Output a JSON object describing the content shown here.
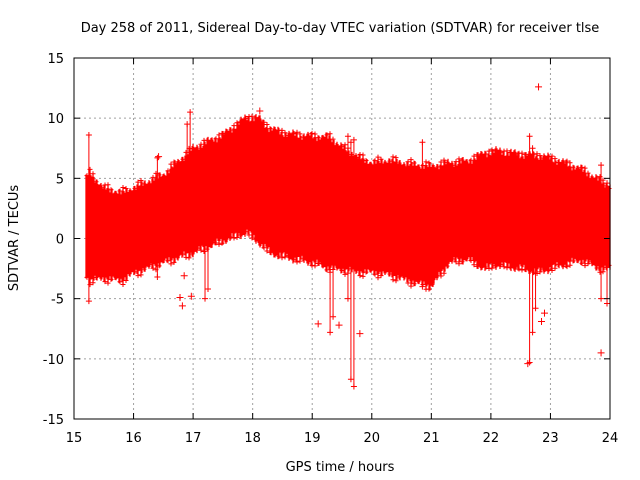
{
  "chart_data": {
    "type": "scatter",
    "title": "Day 258 of 2011, Sidereal Day-to-day VTEC variation (SDTVAR) for receiver tlse",
    "xlabel": "GPS time / hours",
    "ylabel": "SDTVAR / TECUs",
    "xlim": [
      15,
      24
    ],
    "ylim": [
      -15,
      15
    ],
    "xticks": [
      "15",
      "16",
      "17",
      "18",
      "19",
      "20",
      "21",
      "22",
      "23",
      "24"
    ],
    "yticks": [
      "15",
      "10",
      "5",
      "0",
      "-5",
      "-10",
      "-15"
    ],
    "grid": true,
    "marker": "+",
    "series_color": "#ff0000",
    "envelope": {
      "x": [
        15.2,
        15.25,
        15.5,
        15.8,
        16.0,
        16.5,
        17.0,
        17.5,
        17.9,
        18.1,
        18.3,
        18.6,
        19.0,
        19.3,
        19.5,
        19.8,
        20.0,
        20.3,
        20.6,
        21.0,
        21.3,
        21.6,
        21.9,
        22.1,
        22.5,
        22.8,
        23.0,
        23.5,
        23.9,
        24.0
      ],
      "upper": [
        5.0,
        5.5,
        4.2,
        3.8,
        4.2,
        5.3,
        7.5,
        8.6,
        10.1,
        10.0,
        9.1,
        8.7,
        8.5,
        8.4,
        7.6,
        6.7,
        6.3,
        6.5,
        6.2,
        6.0,
        6.3,
        6.4,
        7.1,
        7.3,
        7.0,
        6.9,
        6.7,
        5.8,
        4.6,
        4.5
      ],
      "lower": [
        -3.0,
        -3.5,
        -3.3,
        -3.5,
        -2.9,
        -2.0,
        -1.2,
        -0.2,
        0.5,
        -0.3,
        -1.2,
        -1.6,
        -2.0,
        -2.5,
        -2.6,
        -2.8,
        -2.8,
        -3.0,
        -3.5,
        -4.0,
        -2.0,
        -1.7,
        -2.5,
        -2.2,
        -2.5,
        -2.8,
        -2.5,
        -1.8,
        -2.6,
        -2.6
      ]
    },
    "spikes": [
      {
        "x": 15.25,
        "y1": 8.6,
        "y2": -5.2
      },
      {
        "x": 16.4,
        "y1": 6.7,
        "y2": -3.2
      },
      {
        "x": 16.9,
        "y1": 9.5,
        "y2": -1.0
      },
      {
        "x": 16.95,
        "y1": 10.5,
        "y2": -0.5
      },
      {
        "x": 17.2,
        "y1": 7.0,
        "y2": -5.0
      },
      {
        "x": 17.25,
        "y1": 6.5,
        "y2": -4.2
      },
      {
        "x": 19.3,
        "y1": 7.0,
        "y2": -7.8
      },
      {
        "x": 19.35,
        "y1": 7.0,
        "y2": -6.5
      },
      {
        "x": 19.6,
        "y1": 8.5,
        "y2": -5.0
      },
      {
        "x": 19.65,
        "y1": 8.0,
        "y2": -11.7
      },
      {
        "x": 19.7,
        "y1": 8.2,
        "y2": -12.3
      },
      {
        "x": 20.85,
        "y1": 8.0,
        "y2": -4.0
      },
      {
        "x": 22.65,
        "y1": 8.5,
        "y2": -10.3
      },
      {
        "x": 22.7,
        "y1": 7.5,
        "y2": -7.8
      },
      {
        "x": 22.75,
        "y1": 6.5,
        "y2": -5.8
      },
      {
        "x": 23.85,
        "y1": 6.1,
        "y2": -5.0
      },
      {
        "x": 23.95,
        "y1": 4.6,
        "y2": -5.4
      }
    ],
    "outliers": [
      {
        "x": 18.12,
        "y": 10.6
      },
      {
        "x": 22.8,
        "y": 12.6
      },
      {
        "x": 16.78,
        "y": -4.9
      },
      {
        "x": 16.82,
        "y": -5.6
      },
      {
        "x": 16.85,
        "y": -3.1
      },
      {
        "x": 16.97,
        "y": -4.8
      },
      {
        "x": 16.42,
        "y": 6.8
      },
      {
        "x": 19.1,
        "y": -7.1
      },
      {
        "x": 19.45,
        "y": -7.2
      },
      {
        "x": 19.8,
        "y": -7.9
      },
      {
        "x": 22.85,
        "y": -6.9
      },
      {
        "x": 22.9,
        "y": -6.2
      },
      {
        "x": 23.85,
        "y": -9.5
      },
      {
        "x": 22.62,
        "y": -10.4
      }
    ]
  }
}
